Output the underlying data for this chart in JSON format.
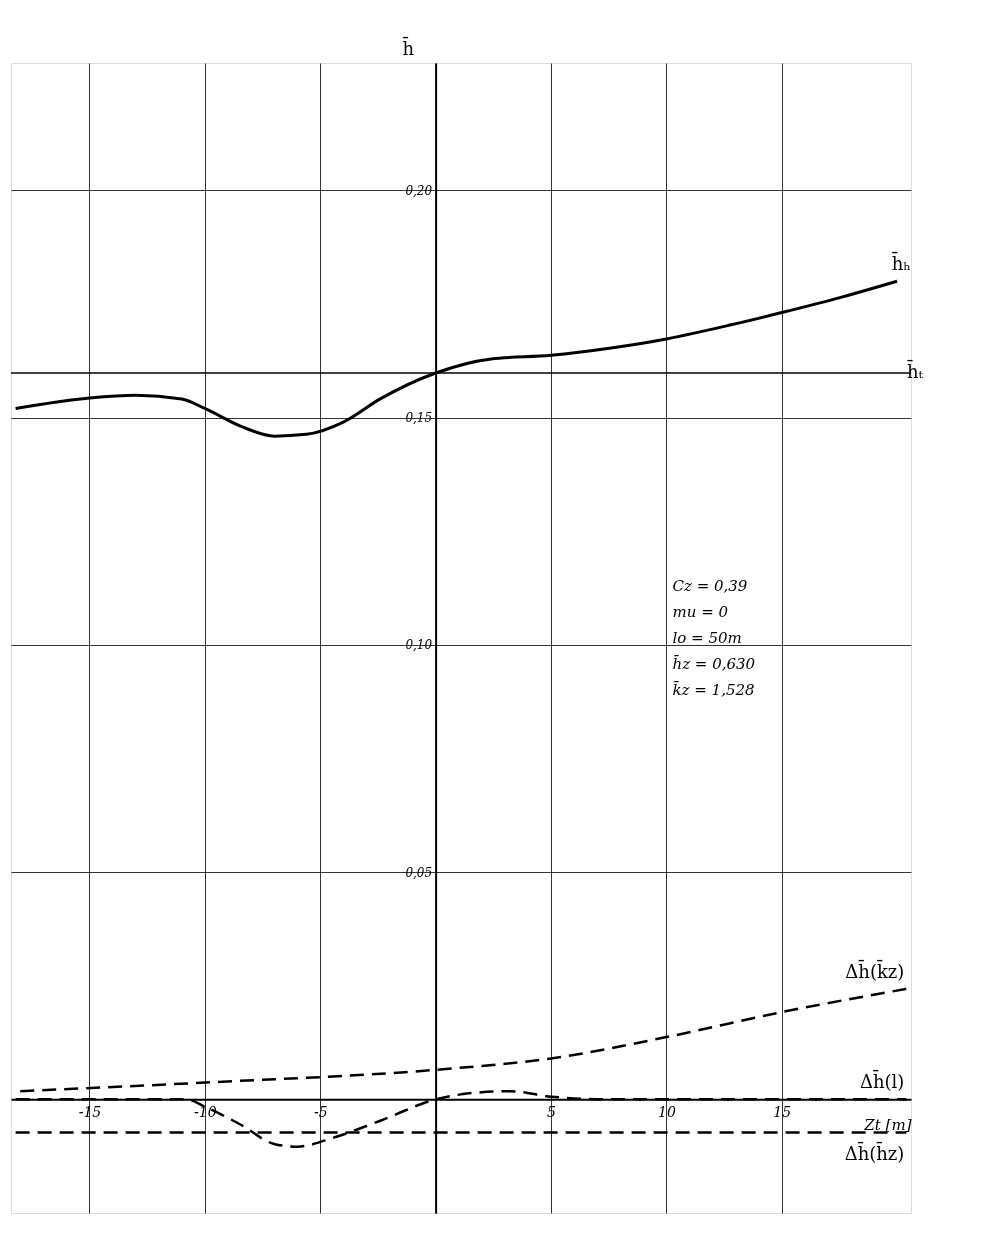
{
  "chart_data": {
    "type": "line",
    "xlabel": "Zt [m]",
    "ylabel": "h̄",
    "xlim": [
      -18.4,
      20.6
    ],
    "ylim": [
      -0.025,
      0.228
    ],
    "xticks": [
      -15,
      -10,
      -5,
      {
        "value": 0,
        "label": null
      },
      5,
      10,
      15
    ],
    "yticks": [
      {
        "value": 0.05,
        "label": "0,05"
      },
      {
        "value": 0.1,
        "label": "0,10"
      },
      {
        "value": 0.15,
        "label": "0,15"
      },
      {
        "value": 0.2,
        "label": "0,20"
      }
    ],
    "grid": true,
    "legend": false,
    "marker": "none",
    "ref_lines": [
      {
        "axis": "y",
        "value": 0.1598,
        "label": "h̄ₜ",
        "color": "#000000",
        "line_style": "solid"
      }
    ],
    "annotations": [
      "Cz = 0,39",
      "mu = 0",
      "lo = 50m",
      "h̄z = 0,630",
      "k̄z = 1,528"
    ],
    "series": [
      {
        "name": "h̄ₕ",
        "color": "#000000",
        "line_style": "solid",
        "x": [
          -18.2,
          -15,
          -13,
          -11,
          -10,
          -8.4,
          -7,
          -5.6,
          -4,
          -2.4,
          0,
          2.4,
          5,
          7.6,
          10,
          12.8,
          15,
          17.6,
          20
        ],
        "values": [
          0.152,
          0.1543,
          0.1549,
          0.1541,
          0.152,
          0.148,
          0.1459,
          0.1463,
          0.149,
          0.1541,
          0.1598,
          0.1629,
          0.1637,
          0.1653,
          0.1673,
          0.1704,
          0.1731,
          0.1765,
          0.18
        ]
      },
      {
        "name": "Δh̄(k̄z)",
        "color": "#000000",
        "line_style": "dashed",
        "x": [
          -18,
          -10,
          0,
          5,
          10,
          15,
          20.4
        ],
        "values": [
          0.0018,
          0.0037,
          0.0065,
          0.009,
          0.0137,
          0.0192,
          0.0243
        ]
      },
      {
        "name": "Δh̄(l)",
        "color": "#000000",
        "line_style": "dashed",
        "x": [
          -18.2,
          -10.8,
          -10,
          -8.4,
          -7,
          -6,
          -4.4,
          -2.4,
          0,
          1.6,
          3.2,
          5,
          7.6,
          20.4
        ],
        "values": [
          0,
          0,
          -0.0016,
          -0.0057,
          -0.0098,
          -0.0104,
          -0.0084,
          -0.0047,
          0,
          0.0014,
          0.0018,
          0.0006,
          0,
          0
        ]
      },
      {
        "name": "Δh̄(h̄z)",
        "color": "#000000",
        "line_style": "dashed",
        "x": [
          -18.2,
          20.4
        ],
        "values": [
          -0.0073,
          -0.0073
        ]
      }
    ]
  }
}
